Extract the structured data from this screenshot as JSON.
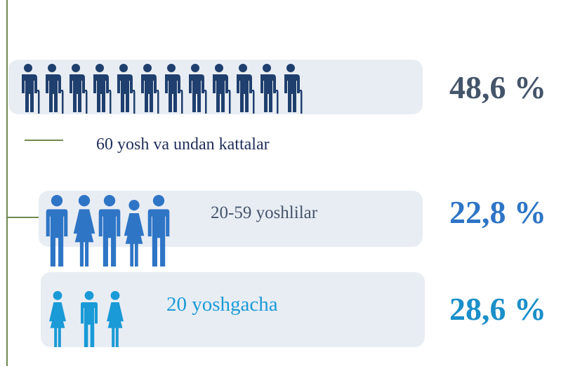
{
  "groups": [
    {
      "label": "60 yosh va undan kattalar",
      "value": "48,6 %"
    },
    {
      "label": "20-59 yoshlilar",
      "value": "22,8 %"
    },
    {
      "label": "20 yoshgacha",
      "value": "28,6 %"
    }
  ]
}
